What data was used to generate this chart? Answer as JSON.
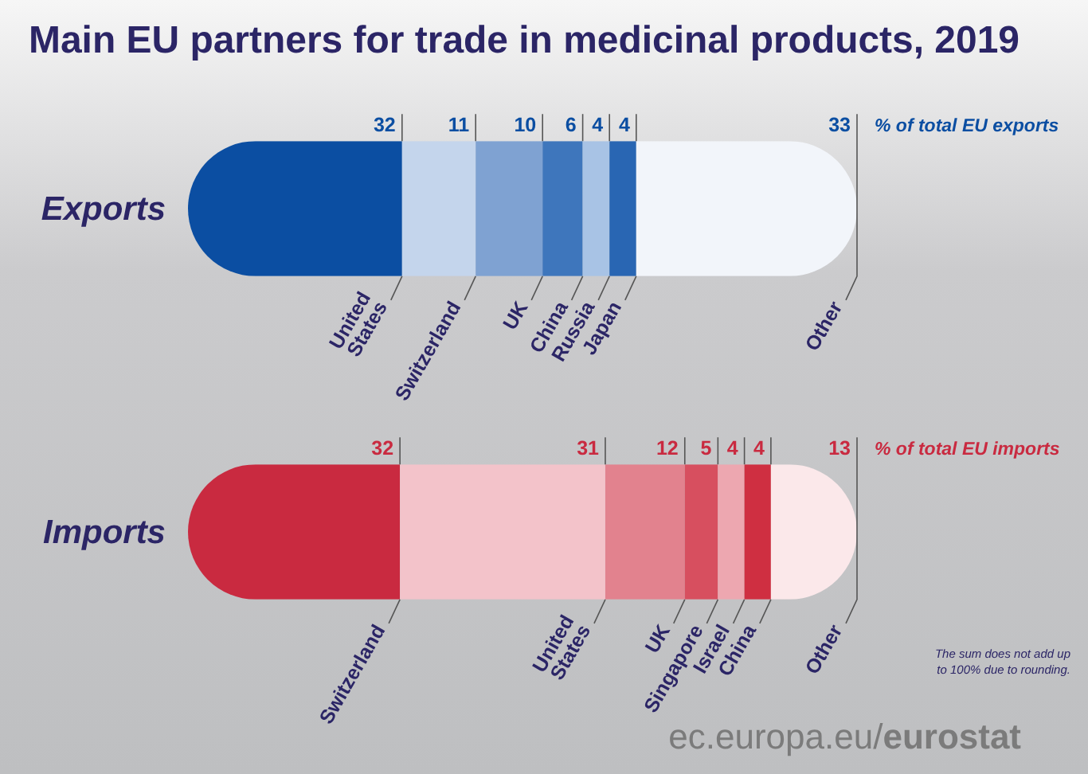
{
  "chart_data": [
    {
      "type": "bar",
      "orientation": "horizontal",
      "stacked": true,
      "title": "Main EU partners for trade in medicinal products, 2019",
      "xlabel": "% of total EU exports",
      "categories": [
        "Exports"
      ],
      "tick_labels": "y",
      "data_labels": true,
      "series": [
        {
          "name": "United States",
          "color": "#0b4ea2",
          "values": [
            32
          ]
        },
        {
          "name": "Switzerland",
          "color": "#c4d5ec",
          "values": [
            11
          ]
        },
        {
          "name": "UK",
          "color": "#7fa2d2",
          "values": [
            10
          ]
        },
        {
          "name": "China",
          "color": "#3e76bc",
          "values": [
            6
          ]
        },
        {
          "name": "Russia",
          "color": "#a8c3e5",
          "values": [
            4
          ]
        },
        {
          "name": "Japan",
          "color": "#2966b3",
          "values": [
            4
          ]
        },
        {
          "name": "Other",
          "color": "#f2f5fa",
          "values": [
            33
          ]
        }
      ]
    },
    {
      "type": "bar",
      "orientation": "horizontal",
      "stacked": true,
      "xlabel": "% of total EU imports",
      "categories": [
        "Imports"
      ],
      "tick_labels": "y",
      "data_labels": true,
      "series": [
        {
          "name": "Switzerland",
          "color": "#c92a40",
          "values": [
            32
          ]
        },
        {
          "name": "United States",
          "color": "#f3c3ca",
          "values": [
            31
          ]
        },
        {
          "name": "UK",
          "color": "#e2828e",
          "values": [
            12
          ]
        },
        {
          "name": "Singapore",
          "color": "#d74f5f",
          "values": [
            5
          ]
        },
        {
          "name": "Israel",
          "color": "#eda7b0",
          "values": [
            4
          ]
        },
        {
          "name": "China",
          "color": "#cf2f41",
          "values": [
            4
          ]
        },
        {
          "name": "Other",
          "color": "#fbe8ea",
          "values": [
            13
          ]
        }
      ],
      "annotations": [
        "The sum does not add up to 100% due to rounding.",
        "ec.europa.eu/eurostat"
      ]
    }
  ]
}
